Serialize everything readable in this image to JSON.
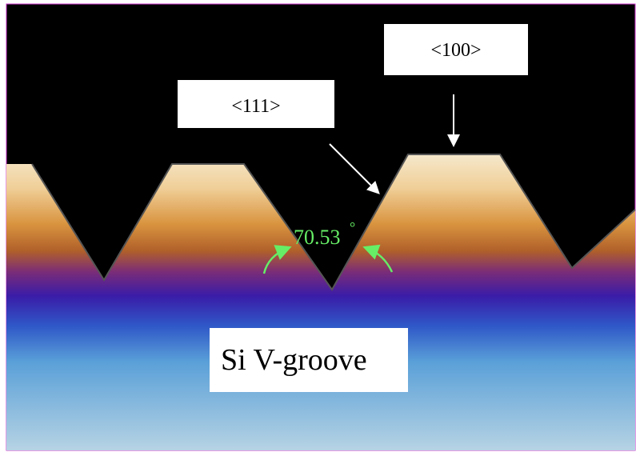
{
  "labels": {
    "plane_top": "<100>",
    "plane_side": "<111>",
    "angle": "70.53",
    "angle_unit": "°",
    "caption": "Si V-groove"
  }
}
